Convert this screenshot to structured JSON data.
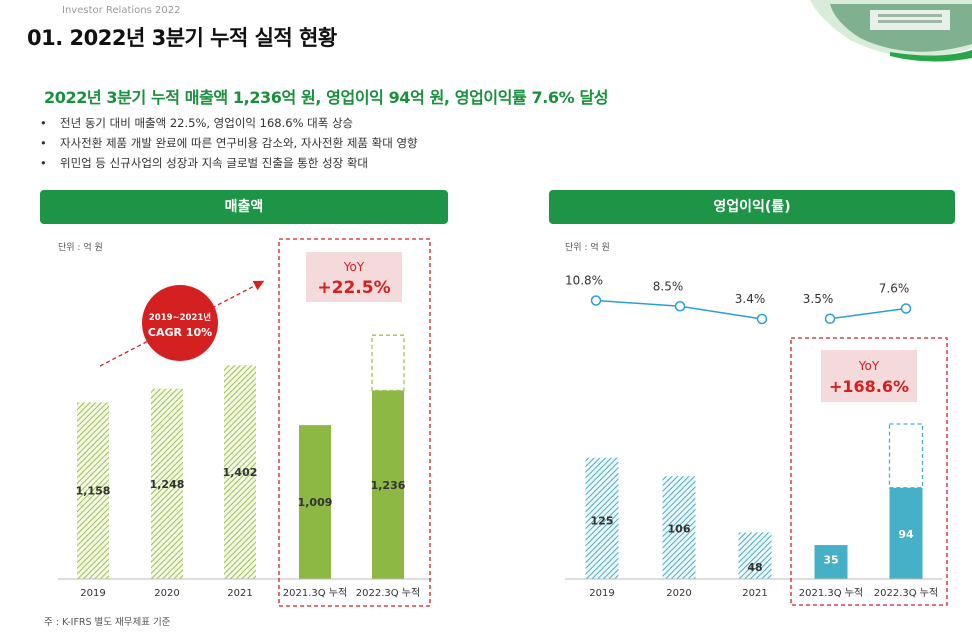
{
  "ir_label": "Investor Relations 2022",
  "page_title": "01. 2022년 3분기 누적 실적 현황",
  "headline": "2022년 3분기 누적 매출액 1,236억 원, 영업이익 94억 원, 영업이익률 7.6% 달성",
  "bullets": [
    "전년 동기 대비 매출액 22.5%, 영업이익 168.6% 대폭 상승",
    "자사전환 제품 개발 완료에 따른 연구비용 감소와, 자사전환 제품 확대 영향",
    "위민업 등 신규사업의 성장과 지속 글로벌 진출을 통한 성장 확대"
  ],
  "footnote": "주 : K-IFRS 별도 재무제표 기준",
  "colors": {
    "brand_green": "#1e9447",
    "rev_bar": "#8db843",
    "op_bar": "#46b0c9",
    "highlight_red": "#d42020",
    "yoy_bg": "#f4dada"
  },
  "chart_data": [
    {
      "type": "bar",
      "title": "매출액",
      "unit_label": "단위 : 억 원",
      "categories": [
        "2019",
        "2020",
        "2021",
        "2021.3Q 누적",
        "2022.3Q 누적"
      ],
      "values": [
        1158,
        1248,
        1402,
        1009,
        1236
      ],
      "value_labels": [
        "1,158",
        "1,248",
        "1,402",
        "1,009",
        "1,236"
      ],
      "annotation_cagr": [
        "2019~2021년",
        "CAGR 10%"
      ],
      "yoy_label": "YoY",
      "yoy_value": "+22.5%"
    },
    {
      "type": "bar",
      "title": "영업이익(률)",
      "unit_label": "단위 : 억 원",
      "categories": [
        "2019",
        "2020",
        "2021",
        "2021.3Q 누적",
        "2022.3Q 누적"
      ],
      "values": [
        125,
        106,
        48,
        35,
        94
      ],
      "value_labels": [
        "125",
        "106",
        "48",
        "35",
        "94"
      ],
      "margin_series": {
        "values": [
          10.8,
          8.5,
          3.4,
          3.5,
          7.6
        ],
        "labels": [
          "10.8%",
          "8.5%",
          "3.4%",
          "3.5%",
          "7.6%"
        ]
      },
      "yoy_label": "YoY",
      "yoy_value": "+168.6%"
    }
  ]
}
